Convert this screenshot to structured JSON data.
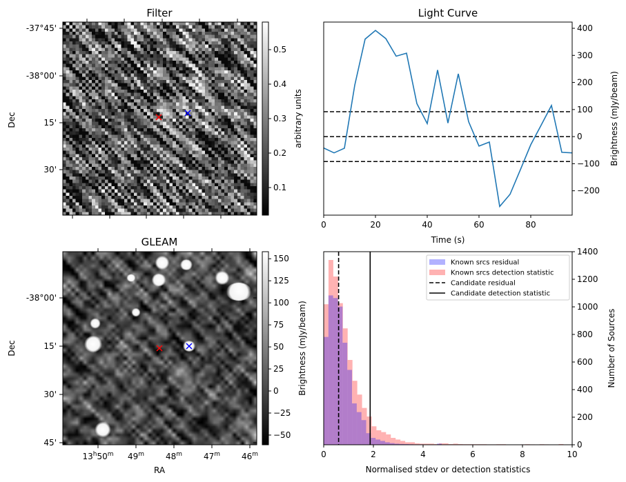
{
  "chart_data": [
    {
      "type": "heatmap",
      "title": "Filter",
      "ylabel": "Dec",
      "yticks": [
        "-37°45'",
        "-38°00'",
        "15'",
        "30'"
      ],
      "colorbar": {
        "label": "arbitrary units",
        "range": [
          0.02,
          0.58
        ],
        "ticks": [
          "0.1",
          "0.2",
          "0.3",
          "0.4",
          "0.5"
        ],
        "tick_values": [
          0.1,
          0.2,
          0.3,
          0.4,
          0.5
        ],
        "colormap": "gray"
      },
      "markers": [
        {
          "name": "candidate",
          "symbol": "x",
          "color": "#ff0000"
        },
        {
          "name": "source",
          "symbol": "x",
          "color": "#0000ff"
        }
      ]
    },
    {
      "type": "line",
      "title": "Light Curve",
      "xlabel": "Time (s)",
      "ylabel": "Brightness (mJy/beam)",
      "xlim": [
        0,
        96
      ],
      "ylim": [
        -290,
        423
      ],
      "xticks": [
        0,
        20,
        40,
        60,
        80
      ],
      "yticks": [
        -200,
        -100,
        0,
        100,
        200,
        300,
        400
      ],
      "color": "#1f77b4",
      "x": [
        0,
        4,
        8,
        12,
        16,
        20,
        24,
        28,
        32,
        36,
        40,
        44,
        48,
        52,
        56,
        60,
        64,
        68,
        72,
        76,
        80,
        84,
        88,
        92,
        96
      ],
      "y": [
        -42,
        -60,
        -43,
        190,
        360,
        392,
        362,
        297,
        308,
        122,
        48,
        246,
        50,
        232,
        55,
        -35,
        -20,
        -258,
        -213,
        -122,
        -30,
        42,
        115,
        -58,
        -60
      ],
      "hlines": [
        92,
        0,
        -92
      ]
    },
    {
      "type": "heatmap",
      "title": "GLEAM",
      "xlabel": "RA",
      "ylabel": "Dec",
      "xticks": [
        "13h50m",
        "49m",
        "48m",
        "47m",
        "46m"
      ],
      "yticks": [
        "-38°00'",
        "15'",
        "30'",
        "45'"
      ],
      "colorbar": {
        "label": "Brightness (mJy/beam)",
        "range": [
          -61,
          158
        ],
        "ticks": [
          "−50",
          "−25",
          "0",
          "25",
          "50",
          "75",
          "100",
          "125",
          "150"
        ],
        "tick_values": [
          -50,
          -25,
          0,
          25,
          50,
          75,
          100,
          125,
          150
        ],
        "colormap": "gray"
      },
      "markers": [
        {
          "name": "candidate",
          "symbol": "x",
          "color": "#ff0000"
        },
        {
          "name": "source",
          "symbol": "x",
          "color": "#0000ff"
        }
      ]
    },
    {
      "type": "bar",
      "subtype": "histogram",
      "xlabel": "Normalised stdev or detection statistics",
      "ylabel": "Number of Sources",
      "xlim": [
        0,
        10
      ],
      "ylim": [
        0,
        1400
      ],
      "xticks": [
        0,
        2,
        4,
        6,
        8,
        10
      ],
      "yticks": [
        0,
        200,
        400,
        600,
        800,
        1000,
        1200,
        1400
      ],
      "series": [
        {
          "name": "Known srcs residual",
          "color": "#0000ff",
          "alpha": 0.3,
          "bin_width": 0.19,
          "bin_start": 0,
          "values": [
            782,
            1083,
            1064,
            1002,
            740,
            543,
            300,
            237,
            179,
            84,
            50,
            38,
            28,
            18,
            12,
            8,
            6,
            5,
            4,
            3,
            3,
            2,
            2,
            2,
            8,
            2,
            1,
            1
          ]
        },
        {
          "name": "Known srcs detection statistic",
          "color": "#ff0000",
          "alpha": 0.3,
          "bin_width": 0.193,
          "bin_start": 0,
          "values": [
            1019,
            1340,
            1220,
            1027,
            844,
            615,
            464,
            364,
            267,
            205,
            134,
            105,
            92,
            75,
            50,
            38,
            28,
            18,
            18,
            10,
            8,
            8,
            8,
            5,
            10,
            10,
            5,
            8,
            5,
            4,
            4,
            4,
            4,
            4,
            3,
            3,
            4,
            4,
            2,
            2,
            2,
            3,
            4,
            3,
            2,
            4,
            3,
            2,
            2,
            5
          ]
        }
      ],
      "vlines": [
        {
          "name": "Candidate residual",
          "x": 0.6,
          "style": "dashed"
        },
        {
          "name": "Candidate detection statistic",
          "x": 1.87,
          "style": "solid"
        }
      ],
      "legend": {
        "placement": "top-right",
        "entries": [
          "Known srcs residual",
          "Known srcs detection statistic",
          "Candidate residual",
          "Candidate detection statistic"
        ]
      }
    }
  ]
}
